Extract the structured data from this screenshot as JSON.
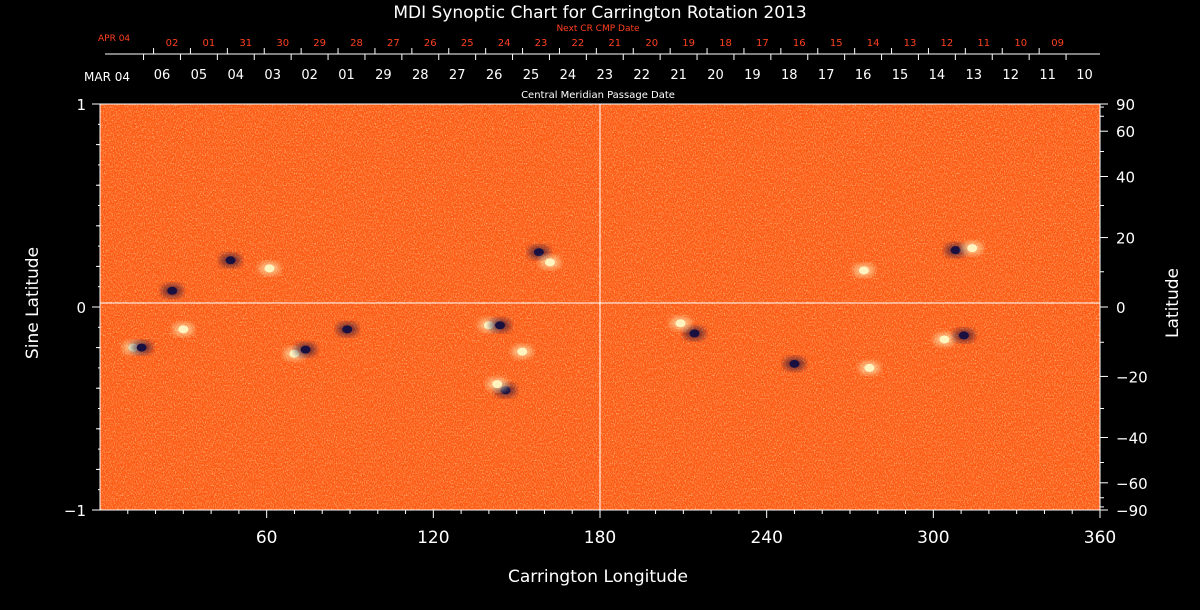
{
  "chart_data": {
    "type": "heatmap",
    "title": "MDI Synoptic Chart for Carrington Rotation 2013",
    "xlabel": "Carrington Longitude",
    "ylabel_left": "Sine Latitude",
    "ylabel_right": "Latitude",
    "xlim": [
      0,
      360
    ],
    "ylim": [
      -1,
      1
    ],
    "x_ticks": [
      60,
      120,
      180,
      240,
      300,
      360
    ],
    "y_ticks_left": [
      "1",
      "0",
      "−1"
    ],
    "y_ticks_right": [
      90,
      60,
      40,
      20,
      0,
      -20,
      -40,
      -60,
      -90
    ],
    "y_tick_labels_right": [
      "90",
      "60",
      "40",
      "20",
      "0",
      "−20",
      "−40",
      "−60",
      "−90"
    ],
    "top_axis": {
      "label": "Central Meridian Passage Date",
      "start_label": "MAR 04",
      "dates": [
        "06",
        "05",
        "04",
        "03",
        "02",
        "01",
        "29",
        "28",
        "27",
        "26",
        "25",
        "24",
        "23",
        "22",
        "21",
        "20",
        "19",
        "18",
        "17",
        "16",
        "15",
        "14",
        "13",
        "12",
        "11",
        "10"
      ]
    },
    "next_axis": {
      "label": "Next CR CMP Date",
      "start_label": "APR 04",
      "dates": [
        "02",
        "01",
        "31",
        "30",
        "29",
        "28",
        "27",
        "26",
        "25",
        "24",
        "23",
        "22",
        "21",
        "20",
        "19",
        "18",
        "17",
        "16",
        "15",
        "14",
        "13",
        "12",
        "11",
        "10",
        "09"
      ]
    },
    "colors": {
      "background": "#ff5a14",
      "positive": "#fff4c0",
      "negative": "#1a1040",
      "gridline": "#ffffff",
      "next_axis": "#ff4020"
    },
    "active_regions": [
      {
        "lon": 12,
        "slat": -0.2,
        "polarity": "positive"
      },
      {
        "lon": 15,
        "slat": -0.2,
        "polarity": "negative"
      },
      {
        "lon": 26,
        "slat": 0.08,
        "polarity": "negative"
      },
      {
        "lon": 30,
        "slat": -0.11,
        "polarity": "positive"
      },
      {
        "lon": 47,
        "slat": 0.23,
        "polarity": "negative"
      },
      {
        "lon": 61,
        "slat": 0.19,
        "polarity": "positive"
      },
      {
        "lon": 70,
        "slat": -0.23,
        "polarity": "positive"
      },
      {
        "lon": 74,
        "slat": -0.21,
        "polarity": "negative"
      },
      {
        "lon": 89,
        "slat": -0.11,
        "polarity": "negative"
      },
      {
        "lon": 140,
        "slat": -0.09,
        "polarity": "positive"
      },
      {
        "lon": 144,
        "slat": -0.09,
        "polarity": "negative"
      },
      {
        "lon": 146,
        "slat": -0.41,
        "polarity": "negative"
      },
      {
        "lon": 143,
        "slat": -0.38,
        "polarity": "positive"
      },
      {
        "lon": 152,
        "slat": -0.22,
        "polarity": "positive"
      },
      {
        "lon": 158,
        "slat": 0.27,
        "polarity": "negative"
      },
      {
        "lon": 162,
        "slat": 0.22,
        "polarity": "positive"
      },
      {
        "lon": 214,
        "slat": -0.13,
        "polarity": "negative"
      },
      {
        "lon": 209,
        "slat": -0.08,
        "polarity": "positive"
      },
      {
        "lon": 250,
        "slat": -0.28,
        "polarity": "negative"
      },
      {
        "lon": 275,
        "slat": 0.18,
        "polarity": "positive"
      },
      {
        "lon": 277,
        "slat": -0.3,
        "polarity": "positive"
      },
      {
        "lon": 304,
        "slat": -0.16,
        "polarity": "positive"
      },
      {
        "lon": 308,
        "slat": 0.28,
        "polarity": "negative"
      },
      {
        "lon": 311,
        "slat": -0.14,
        "polarity": "negative"
      },
      {
        "lon": 314,
        "slat": 0.29,
        "polarity": "positive"
      }
    ]
  }
}
